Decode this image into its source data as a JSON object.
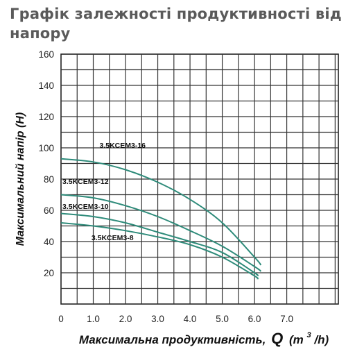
{
  "page": {
    "title": "Графік залежності продуктивності від напору"
  },
  "chart_data": {
    "type": "line",
    "title": "Графік залежності продуктивності від напору",
    "xlabel": "Максимальна продуктивність,",
    "xlabel_symbol": "Q",
    "xlabel_unit_open": "(m",
    "xlabel_unit_sup": "3",
    "xlabel_unit_close": "/h)",
    "ylabel": "Максимальний напір (H)",
    "xlim": [
      0,
      8.6
    ],
    "ylim": [
      0,
      160
    ],
    "x_ticks": [
      "0",
      "1.0",
      "2.0",
      "3.0",
      "4.0",
      "5.0",
      "6.0",
      "7.0"
    ],
    "x_tick_values": [
      0,
      1,
      2,
      3,
      4,
      5,
      6,
      7
    ],
    "y_ticks": [
      "20",
      "40",
      "60",
      "80",
      "100",
      "120",
      "140",
      "160"
    ],
    "y_tick_values": [
      20,
      40,
      60,
      80,
      100,
      120,
      140,
      160
    ],
    "grid": true,
    "line_color": "#2e8b7a",
    "series": [
      {
        "name": "3.5KCEM3-16",
        "x": [
          0,
          1,
          2,
          3,
          4,
          5,
          6,
          6.2
        ],
        "y": [
          93,
          91,
          86,
          78,
          67,
          52,
          30,
          25
        ]
      },
      {
        "name": "3.5KCEM3-12",
        "x": [
          0,
          1,
          2,
          3,
          4,
          5,
          6,
          6.2
        ],
        "y": [
          70,
          68,
          63,
          56,
          47,
          37,
          24,
          21
        ]
      },
      {
        "name": "3.5KCEM3-10",
        "x": [
          0,
          1,
          2,
          3,
          4,
          5,
          6,
          6.1
        ],
        "y": [
          58,
          56,
          52,
          46,
          40,
          33,
          20,
          18
        ]
      },
      {
        "name": "3.5KCEM3-8",
        "x": [
          0,
          1,
          2,
          3,
          4,
          5,
          6,
          6.1
        ],
        "y": [
          52,
          50,
          47,
          43,
          38,
          30,
          18,
          16
        ]
      }
    ]
  }
}
